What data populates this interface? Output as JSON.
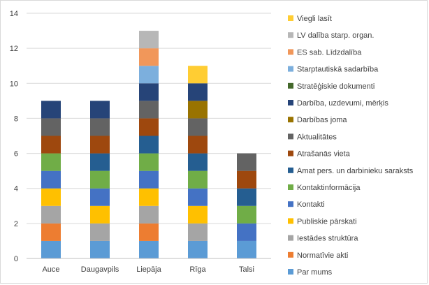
{
  "chart_data": {
    "type": "bar",
    "stacked": true,
    "title": "",
    "xlabel": "",
    "ylabel": "",
    "ylim": [
      0,
      14
    ],
    "yticks": [
      0,
      2,
      4,
      6,
      8,
      10,
      12,
      14
    ],
    "grid": true,
    "legend_position": "right",
    "categories": [
      "Auce",
      "Daugavpils",
      "Liepāja",
      "Rīga",
      "Talsi"
    ],
    "series": [
      {
        "name": "Par mums",
        "color": "#5b9bd5",
        "values": [
          1,
          1,
          1,
          1,
          1
        ]
      },
      {
        "name": "Normatīvie akti",
        "color": "#ed7d31",
        "values": [
          1,
          0,
          1,
          0,
          0
        ]
      },
      {
        "name": "Iestādes struktūra",
        "color": "#a5a5a5",
        "values": [
          1,
          1,
          1,
          1,
          0
        ]
      },
      {
        "name": "Publiskie pārskati",
        "color": "#ffc000",
        "values": [
          1,
          1,
          1,
          1,
          0
        ]
      },
      {
        "name": "Kontakti",
        "color": "#4472c4",
        "values": [
          1,
          1,
          1,
          1,
          1
        ]
      },
      {
        "name": "Kontaktinformācija",
        "color": "#70ad47",
        "values": [
          1,
          1,
          1,
          1,
          1
        ]
      },
      {
        "name": "Amat pers. un darbinieku saraksts",
        "color": "#255e91",
        "values": [
          0,
          1,
          1,
          1,
          1
        ]
      },
      {
        "name": "Atrašanās vieta",
        "color": "#9e480e",
        "values": [
          1,
          1,
          1,
          1,
          1
        ]
      },
      {
        "name": "Aktualitātes",
        "color": "#636363",
        "values": [
          1,
          1,
          1,
          1,
          1
        ]
      },
      {
        "name": "Darbības joma",
        "color": "#997300",
        "values": [
          0,
          0,
          0,
          1,
          0
        ]
      },
      {
        "name": "Darbība, uzdevumi, mērķis",
        "color": "#264478",
        "values": [
          1,
          1,
          1,
          1,
          0
        ]
      },
      {
        "name": "Stratēģiskie dokumenti",
        "color": "#43682b",
        "values": [
          0,
          0,
          0,
          0,
          0
        ]
      },
      {
        "name": "Starptautiskā sadarbība",
        "color": "#7cafdd",
        "values": [
          0,
          0,
          1,
          0,
          0
        ]
      },
      {
        "name": "ES sab. Līdzdalība",
        "color": "#f1975a",
        "values": [
          0,
          0,
          1,
          0,
          0
        ]
      },
      {
        "name": "LV dalība starp. organ.",
        "color": "#b7b7b7",
        "values": [
          0,
          0,
          1,
          0,
          0
        ]
      },
      {
        "name": "Viegli lasīt",
        "color": "#ffcd33",
        "values": [
          0,
          0,
          0,
          1,
          0
        ]
      }
    ]
  }
}
